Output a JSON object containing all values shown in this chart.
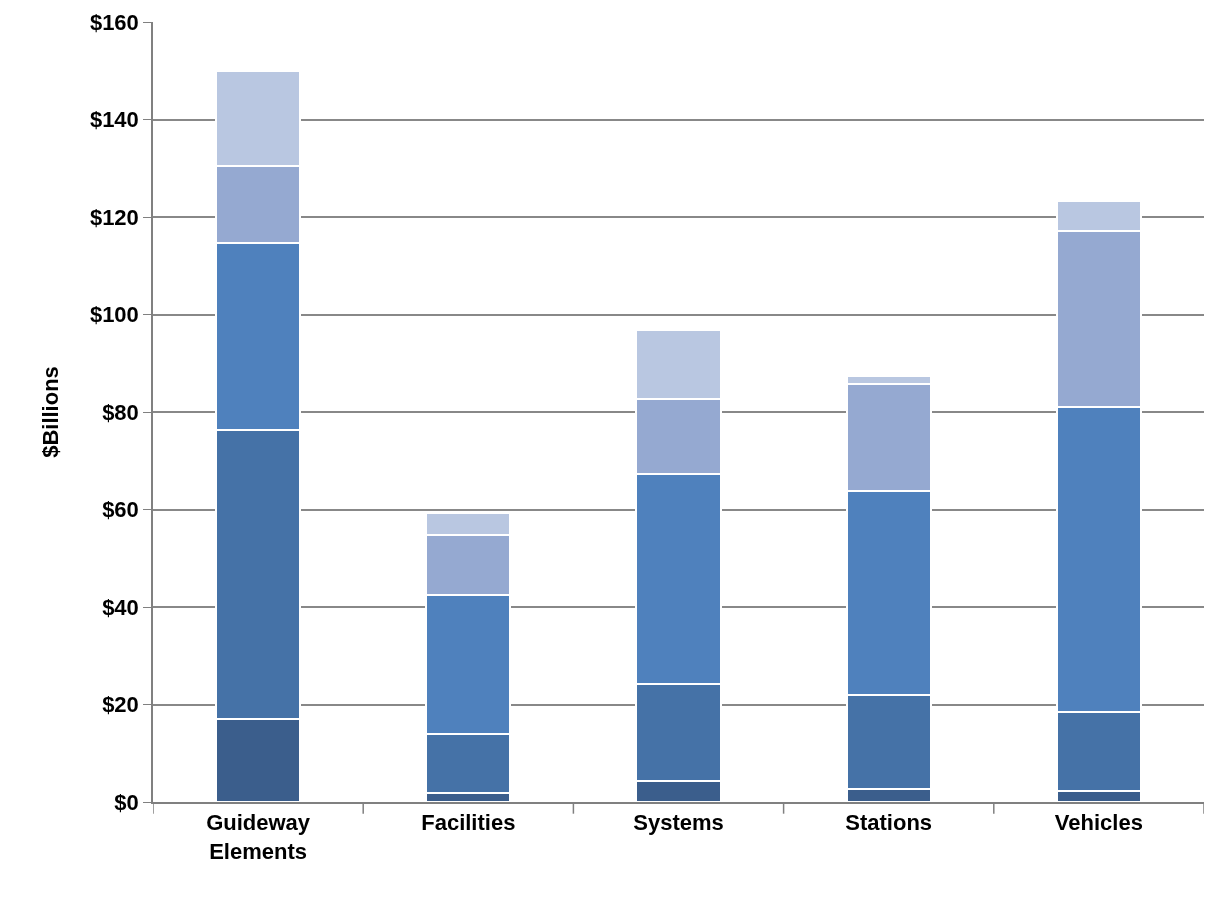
{
  "chart_data": {
    "type": "bar",
    "stacked": true,
    "ylabel": "$Billions",
    "categories": [
      "Guideway Elements",
      "Facilities",
      "Systems",
      "Stations",
      "Vehicles"
    ],
    "series": [
      {
        "color": "#3b5e8c",
        "values": [
          17.0,
          1.8,
          4.3,
          2.7,
          2.3
        ]
      },
      {
        "color": "#4572a7",
        "values": [
          59.3,
          12.1,
          19.9,
          19.2,
          16.2
        ]
      },
      {
        "color": "#4f81bd",
        "values": [
          38.4,
          28.6,
          43.1,
          41.9,
          62.5
        ]
      },
      {
        "color": "#95a9d1",
        "values": [
          15.8,
          12.3,
          15.4,
          21.9,
          36.1
        ]
      },
      {
        "color": "#b9c7e1",
        "values": [
          19.5,
          4.5,
          14.1,
          1.7,
          6.2
        ]
      }
    ],
    "ylim": [
      0,
      160
    ],
    "yticks": [
      {
        "value": 0,
        "label": "$0"
      },
      {
        "value": 20,
        "label": "$20"
      },
      {
        "value": 40,
        "label": "$40"
      },
      {
        "value": 60,
        "label": "$60"
      },
      {
        "value": 80,
        "label": "$80"
      },
      {
        "value": 100,
        "label": "$100"
      },
      {
        "value": 120,
        "label": "$120"
      },
      {
        "value": 140,
        "label": "$140"
      },
      {
        "value": 160,
        "label": "$160"
      }
    ],
    "grid": "y"
  }
}
